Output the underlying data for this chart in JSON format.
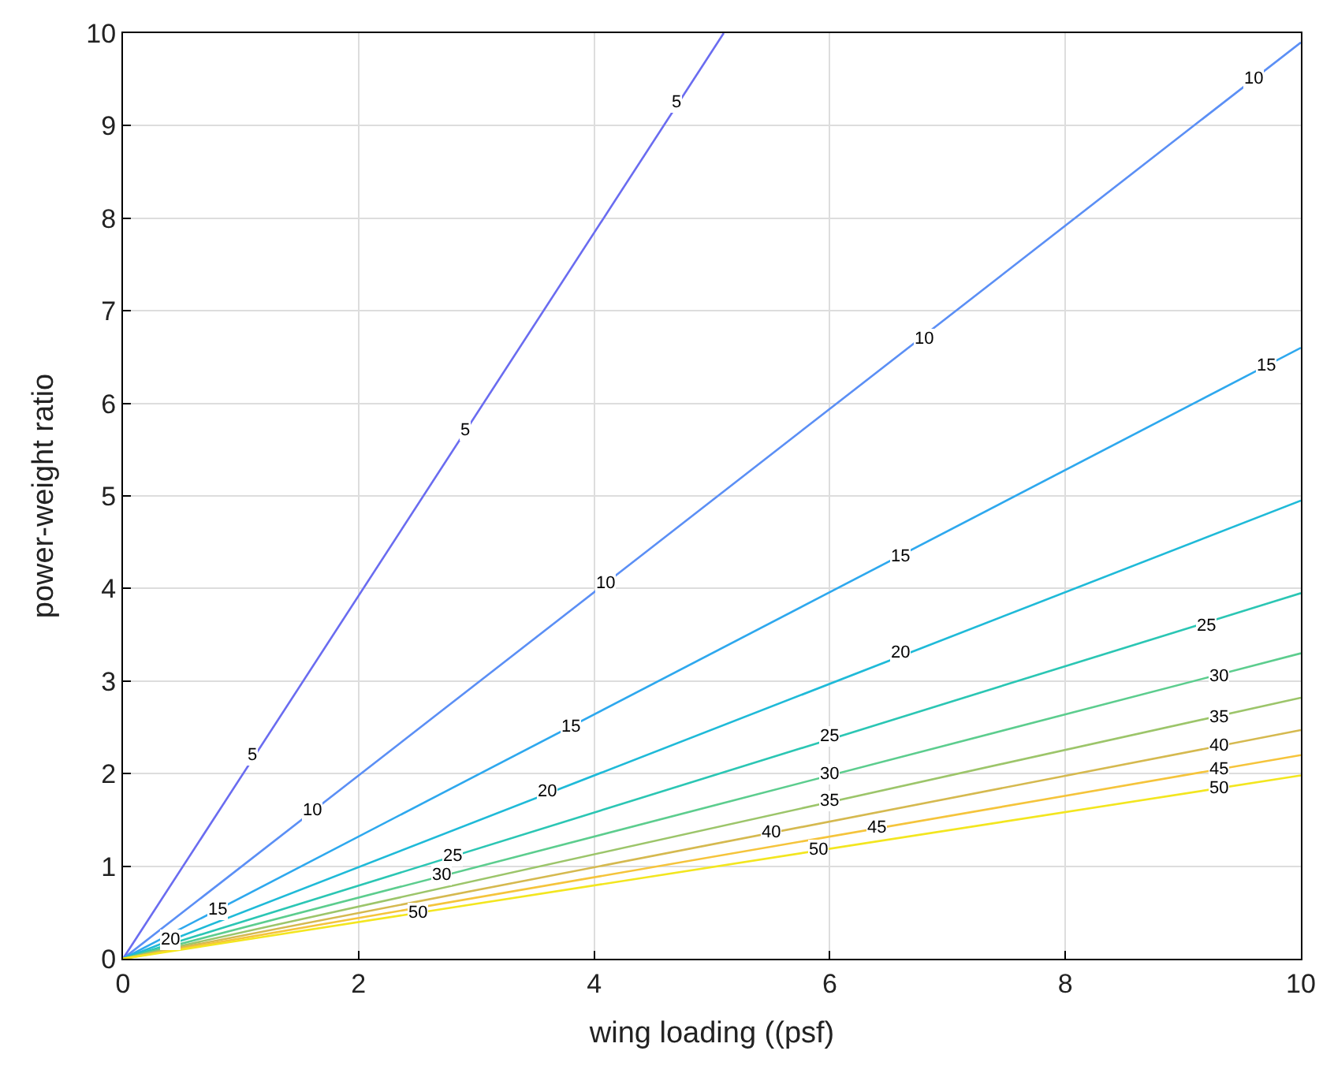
{
  "chart_data": {
    "type": "line",
    "xlabel": "wing loading ((psf)",
    "ylabel": "power-weight ratio",
    "xlim": [
      0,
      10
    ],
    "ylim": [
      0,
      10
    ],
    "xticks": [
      0,
      2,
      4,
      6,
      8,
      10
    ],
    "yticks": [
      0,
      1,
      2,
      3,
      4,
      5,
      6,
      7,
      8,
      9,
      10
    ],
    "grid": true,
    "legend": false,
    "marker": "none",
    "line_style": "solid",
    "series": [
      {
        "color": "#6a6cf0",
        "x": [
          0,
          5.1
        ],
        "values": [
          0,
          10
        ]
      },
      {
        "color": "#5b8ff5",
        "x": [
          0,
          10
        ],
        "values": [
          0,
          9.9
        ]
      },
      {
        "color": "#2ea8ee",
        "x": [
          0,
          10
        ],
        "values": [
          0,
          6.6
        ]
      },
      {
        "color": "#1fbad8",
        "x": [
          0,
          10
        ],
        "values": [
          0,
          4.95
        ]
      },
      {
        "color": "#2bc6b4",
        "x": [
          0,
          10
        ],
        "values": [
          0,
          3.95
        ]
      },
      {
        "color": "#5ccd8e",
        "x": [
          0,
          10
        ],
        "values": [
          0,
          3.3
        ]
      },
      {
        "color": "#9cc56a",
        "x": [
          0,
          10
        ],
        "values": [
          0,
          2.82
        ]
      },
      {
        "color": "#d5b94f",
        "x": [
          0,
          10
        ],
        "values": [
          0,
          2.47
        ]
      },
      {
        "color": "#f5c43b",
        "x": [
          0,
          10
        ],
        "values": [
          0,
          2.2
        ]
      },
      {
        "color": "#f3e61f",
        "x": [
          0,
          10
        ],
        "values": [
          0,
          1.98
        ]
      }
    ],
    "annotations": [
      {
        "text": "5",
        "x": 1.1,
        "y": 2.2
      },
      {
        "text": "5",
        "x": 2.9,
        "y": 5.7
      },
      {
        "text": "5",
        "x": 4.7,
        "y": 9.25
      },
      {
        "text": "10",
        "x": 1.6,
        "y": 1.6
      },
      {
        "text": "10",
        "x": 4.1,
        "y": 4.05
      },
      {
        "text": "10",
        "x": 6.8,
        "y": 6.7
      },
      {
        "text": "10",
        "x": 9.6,
        "y": 9.5
      },
      {
        "text": "15",
        "x": 0.8,
        "y": 0.53
      },
      {
        "text": "15",
        "x": 3.8,
        "y": 2.5
      },
      {
        "text": "15",
        "x": 6.6,
        "y": 4.35
      },
      {
        "text": "15",
        "x": 9.7,
        "y": 6.4
      },
      {
        "text": "20",
        "x": 0.4,
        "y": 0.2
      },
      {
        "text": "20",
        "x": 3.6,
        "y": 1.8
      },
      {
        "text": "20",
        "x": 6.6,
        "y": 3.3
      },
      {
        "text": "25",
        "x": 2.8,
        "y": 1.1
      },
      {
        "text": "25",
        "x": 6.0,
        "y": 2.4
      },
      {
        "text": "25",
        "x": 9.2,
        "y": 3.6
      },
      {
        "text": "30",
        "x": 2.7,
        "y": 0.9
      },
      {
        "text": "30",
        "x": 6.0,
        "y": 2.0
      },
      {
        "text": "30",
        "x": 9.3,
        "y": 3.05
      },
      {
        "text": "35",
        "x": 6.0,
        "y": 1.7
      },
      {
        "text": "35",
        "x": 9.3,
        "y": 2.6
      },
      {
        "text": "40",
        "x": 5.5,
        "y": 1.36
      },
      {
        "text": "40",
        "x": 9.3,
        "y": 2.3
      },
      {
        "text": "45",
        "x": 6.4,
        "y": 1.41
      },
      {
        "text": "45",
        "x": 9.3,
        "y": 2.05
      },
      {
        "text": "50",
        "x": 2.5,
        "y": 0.5
      },
      {
        "text": "50",
        "x": 5.9,
        "y": 1.17
      },
      {
        "text": "50",
        "x": 9.3,
        "y": 1.84
      }
    ]
  }
}
